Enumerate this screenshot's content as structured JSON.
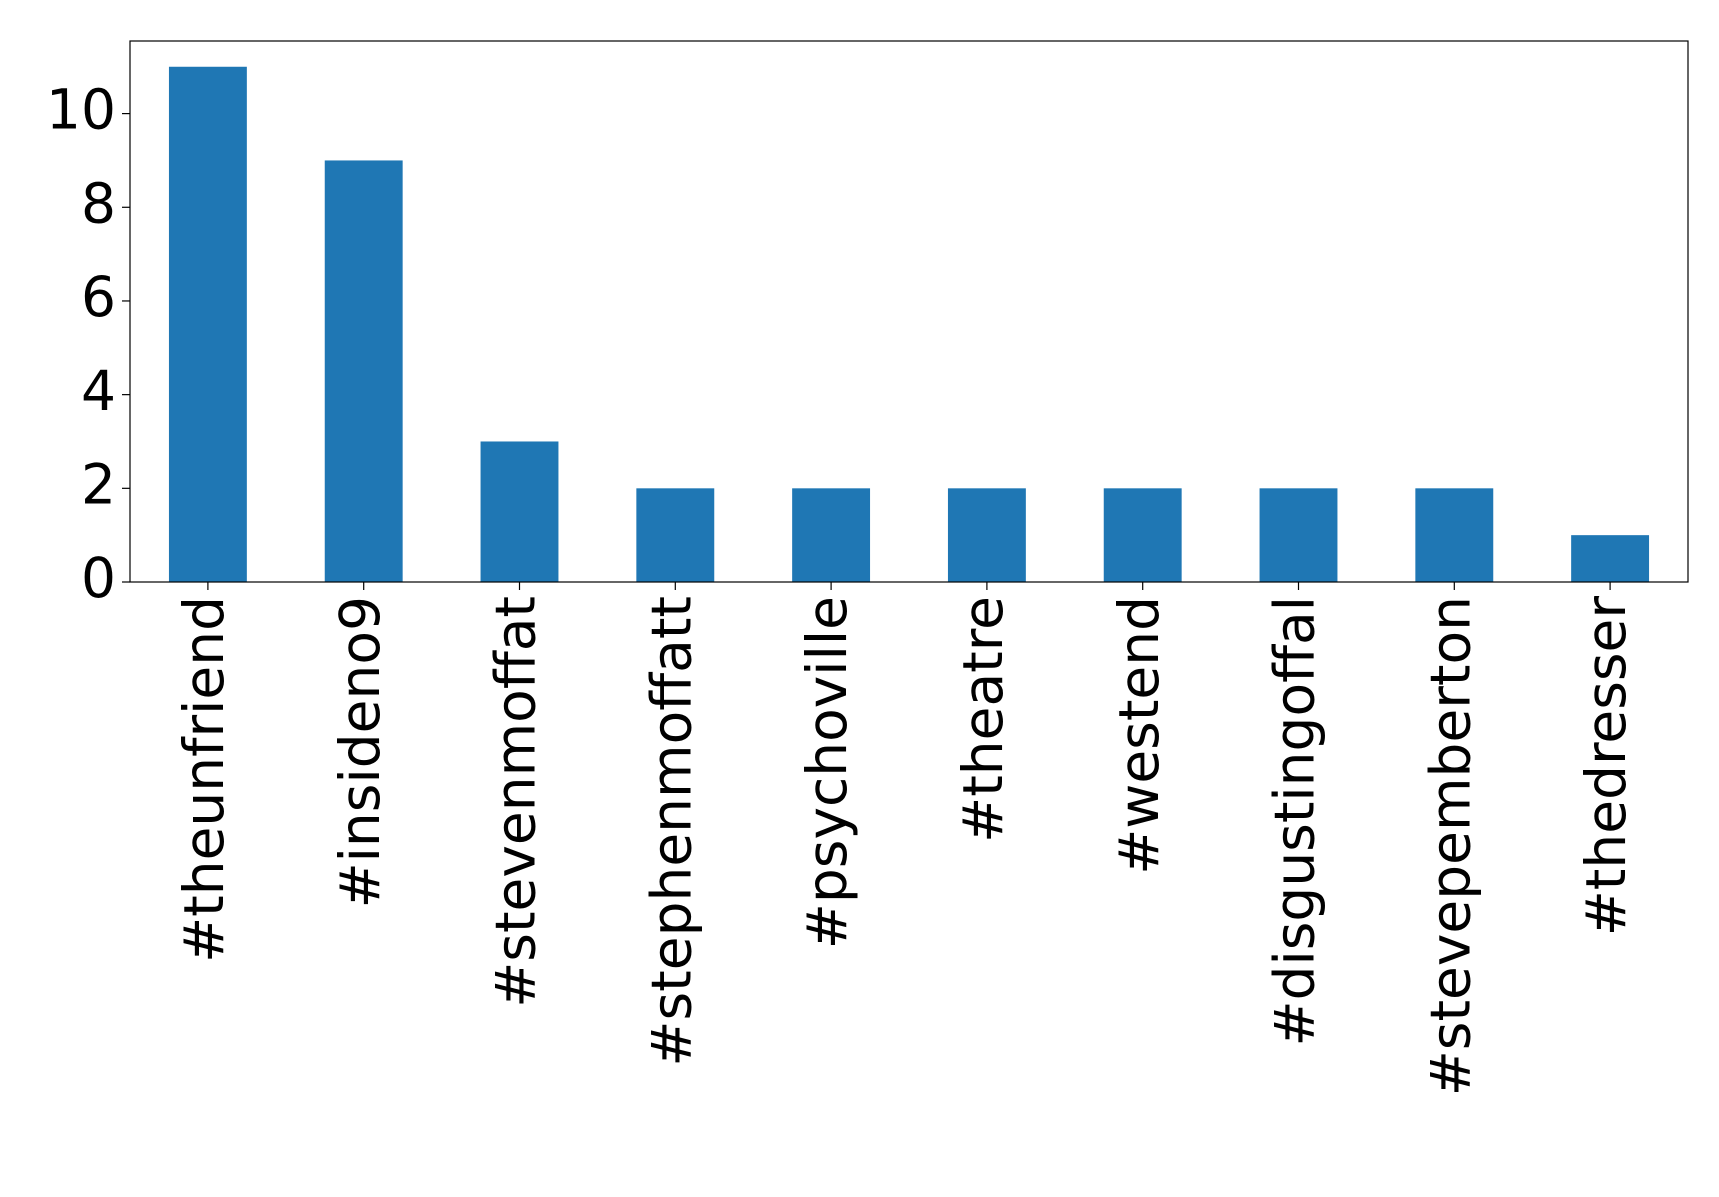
{
  "chart_data": {
    "type": "bar",
    "categories": [
      "#theunfriend",
      "#insideno9",
      "#stevenmoffat",
      "#stephenmoffatt",
      "#psychoville",
      "#theatre",
      "#westend",
      "#disgustingoffal",
      "#stevepemberton",
      "#thedresser"
    ],
    "values": [
      11,
      9,
      3,
      2,
      2,
      2,
      2,
      2,
      2,
      1
    ],
    "color": "#1f77b4",
    "ylim": [
      0,
      11.55
    ],
    "yticks": [
      0,
      2,
      4,
      6,
      8,
      10
    ],
    "grid": false
  }
}
